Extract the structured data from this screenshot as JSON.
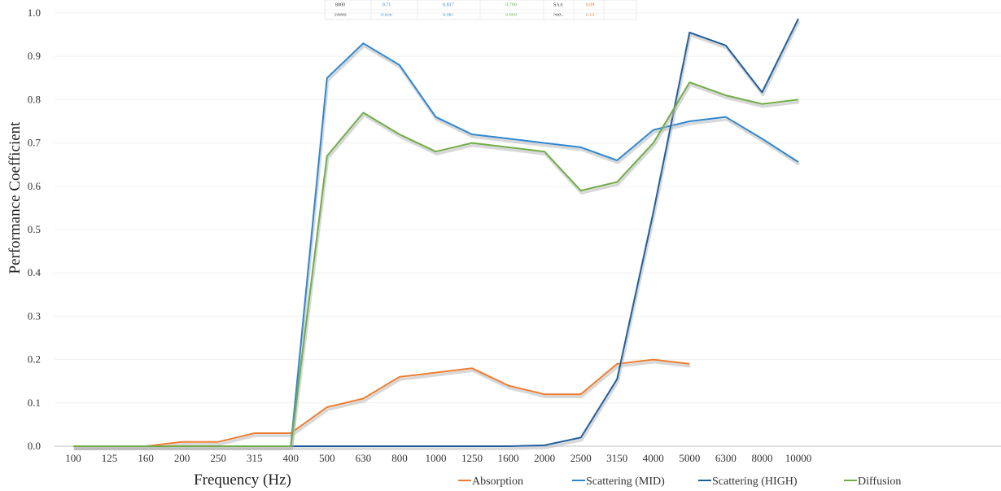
{
  "chart_data": {
    "type": "line",
    "xlabel": "Frequency (Hz)",
    "ylabel": "Performance Coefficient",
    "ylim": [
      0,
      1.0
    ],
    "yticks": [
      "0.0",
      "0.1",
      "0.2",
      "0.3",
      "0.4",
      "0.5",
      "0.6",
      "0.7",
      "0.8",
      "0.9",
      "1.0"
    ],
    "categories": [
      "100",
      "125",
      "160",
      "200",
      "250",
      "315",
      "400",
      "500",
      "630",
      "800",
      "1000",
      "1250",
      "1600",
      "2000",
      "2500",
      "3150",
      "4000",
      "5000",
      "6300",
      "8000",
      "10000"
    ],
    "grid": "horizontal",
    "legend_position": "bottom",
    "series": [
      {
        "name": "Absorption",
        "color": "#ED7D31",
        "values": [
          0,
          0,
          0,
          0.01,
          0.01,
          0.03,
          0.03,
          0.09,
          0.11,
          0.16,
          0.17,
          0.18,
          0.14,
          0.12,
          0.12,
          0.19,
          0.2,
          0.19,
          null,
          null,
          null
        ]
      },
      {
        "name": "Scattering (MID)",
        "color": "#2E86D1",
        "values": [
          0,
          0,
          0,
          0,
          0,
          0,
          0,
          0.85,
          0.93,
          0.88,
          0.76,
          0.72,
          0.71,
          0.7,
          0.69,
          0.66,
          0.73,
          0.75,
          0.76,
          0.71,
          0.656
        ]
      },
      {
        "name": "Scattering (HIGH)",
        "color": "#1F5E9E",
        "values": [
          0,
          0,
          0,
          0,
          0,
          0,
          0,
          0,
          0,
          0,
          0,
          0,
          0,
          0.002,
          0.02,
          0.155,
          0.54,
          0.955,
          0.925,
          0.817,
          0.987
        ]
      },
      {
        "name": "Diffusion",
        "color": "#70AD47",
        "values": [
          0,
          0,
          0,
          0,
          0,
          0,
          0,
          0.67,
          0.77,
          0.72,
          0.68,
          0.7,
          0.69,
          0.68,
          0.59,
          0.61,
          0.7,
          0.84,
          0.81,
          0.79,
          0.8
        ]
      }
    ],
    "table_fragment": {
      "rows": [
        {
          "freq": "8000",
          "mid": "0.71",
          "high": "0.817",
          "diff": "0.790",
          "label": "SAA",
          "value": "0.09"
        },
        {
          "freq": "10000",
          "mid": "0.656",
          "high": "0.987",
          "diff": "0.800",
          "label": "NRC",
          "value": "0.10"
        }
      ]
    }
  }
}
